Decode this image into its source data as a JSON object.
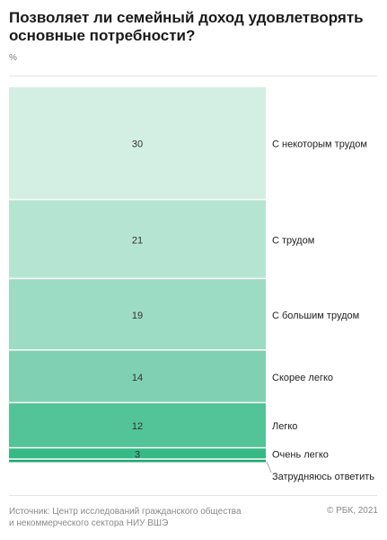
{
  "header": {
    "title_line1": "Позволяет ли семейный доход удовлетворять",
    "title_line2": "основные потребности?",
    "unit": "%"
  },
  "footer": {
    "source_line1": "Источник: Центр исследований гражданского общества",
    "source_line2": "и некоммерческого сектора НИУ ВШЭ",
    "copyright": "© РБК, 2021"
  },
  "chart_data": {
    "type": "bar",
    "stacked": true,
    "orientation": "vertical",
    "title": "Позволяет ли семейный доход удовлетворять основные потребности?",
    "unit": "%",
    "categories": [
      "С некоторым трудом",
      "С трудом",
      "С большим трудом",
      "Скорее легко",
      "Легко",
      "Очень легко",
      "Затрудняюсь ответить"
    ],
    "values": [
      30,
      21,
      19,
      14,
      12,
      3,
      1
    ],
    "value_labels": [
      "30",
      "21",
      "19",
      "14",
      "12",
      "3",
      ""
    ],
    "colors": [
      "#d3efe4",
      "#b5e5d2",
      "#9ddcc4",
      "#80d1b3",
      "#52c497",
      "#36b985",
      "#1fa673"
    ]
  }
}
